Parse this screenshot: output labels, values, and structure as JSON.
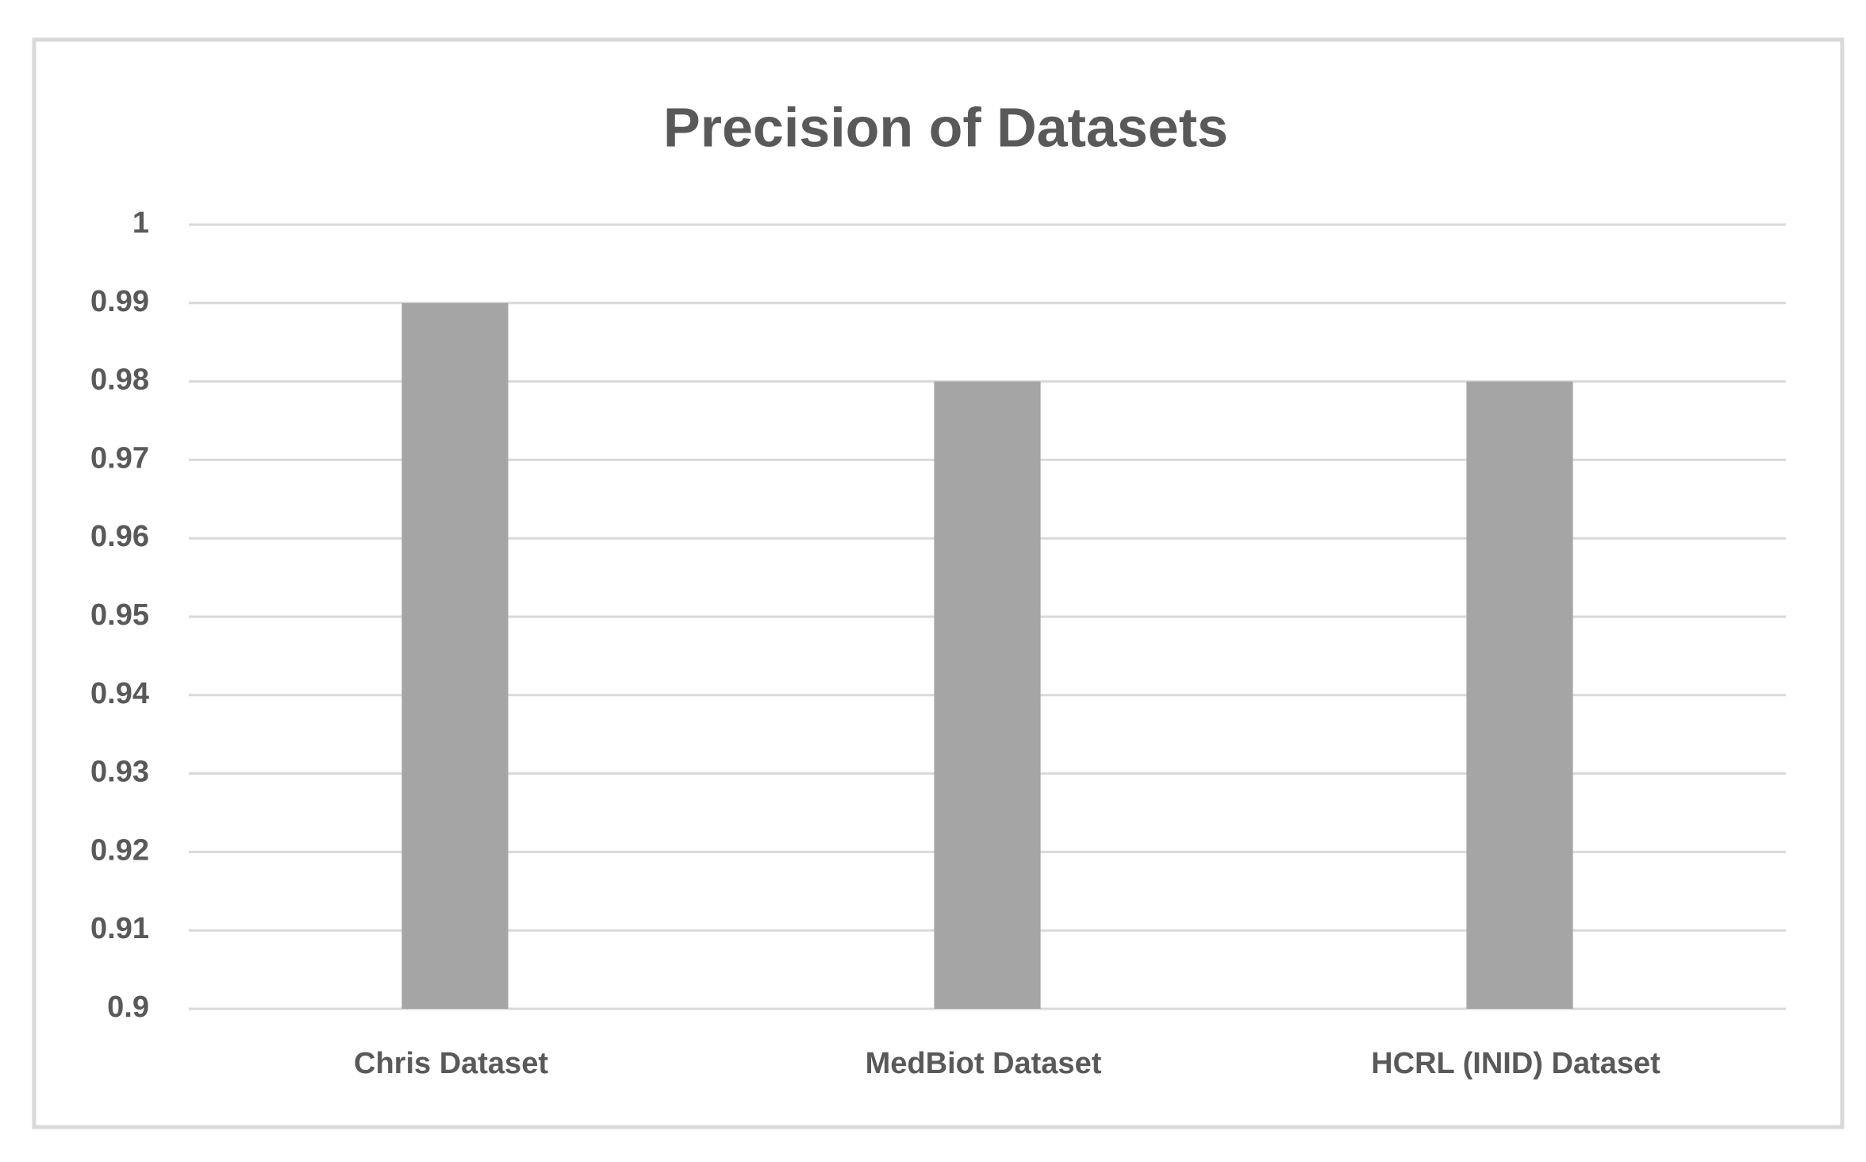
{
  "chart_data": {
    "type": "bar",
    "title": "Precision of Datasets",
    "categories": [
      "Chris Dataset",
      "MedBiot Dataset",
      "HCRL (INID) Dataset"
    ],
    "values": [
      0.99,
      0.98,
      0.98
    ],
    "color": "#a5a5a5",
    "ylim": [
      0.9,
      1
    ],
    "yticks": [
      0.9,
      0.91,
      0.92,
      0.93,
      0.94,
      0.95,
      0.96,
      0.97,
      0.98,
      0.99,
      1
    ],
    "grid": true
  }
}
